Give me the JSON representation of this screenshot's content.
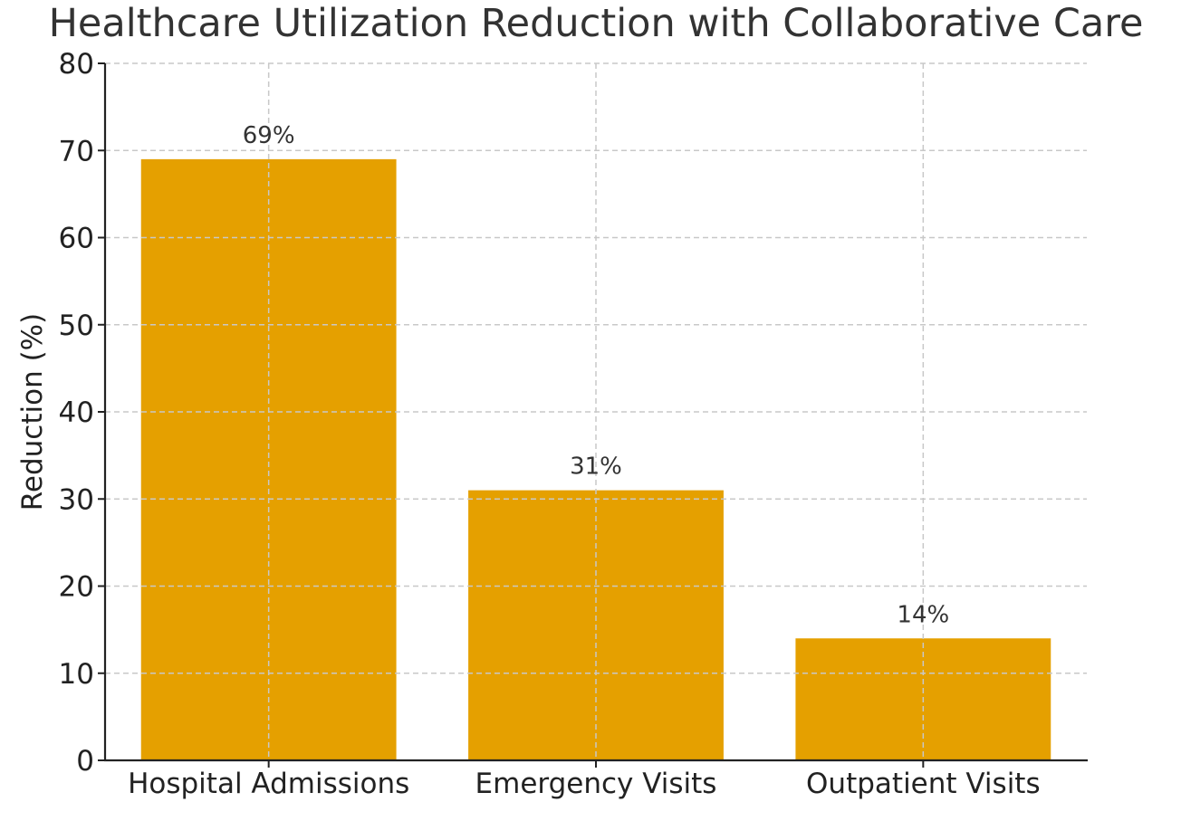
{
  "chart_data": {
    "type": "bar",
    "title": "Healthcare Utilization Reduction with Collaborative Care",
    "xlabel": "",
    "ylabel": "Reduction (%)",
    "categories": [
      "Hospital Admissions",
      "Emergency Visits",
      "Outpatient Visits"
    ],
    "values": [
      69,
      31,
      14
    ],
    "data_labels": [
      "69%",
      "31%",
      "14%"
    ],
    "ylim": [
      0,
      80
    ],
    "yticks": [
      0,
      10,
      20,
      30,
      40,
      50,
      60,
      70,
      80
    ],
    "grid": true,
    "bar_color": "#E5A000"
  }
}
